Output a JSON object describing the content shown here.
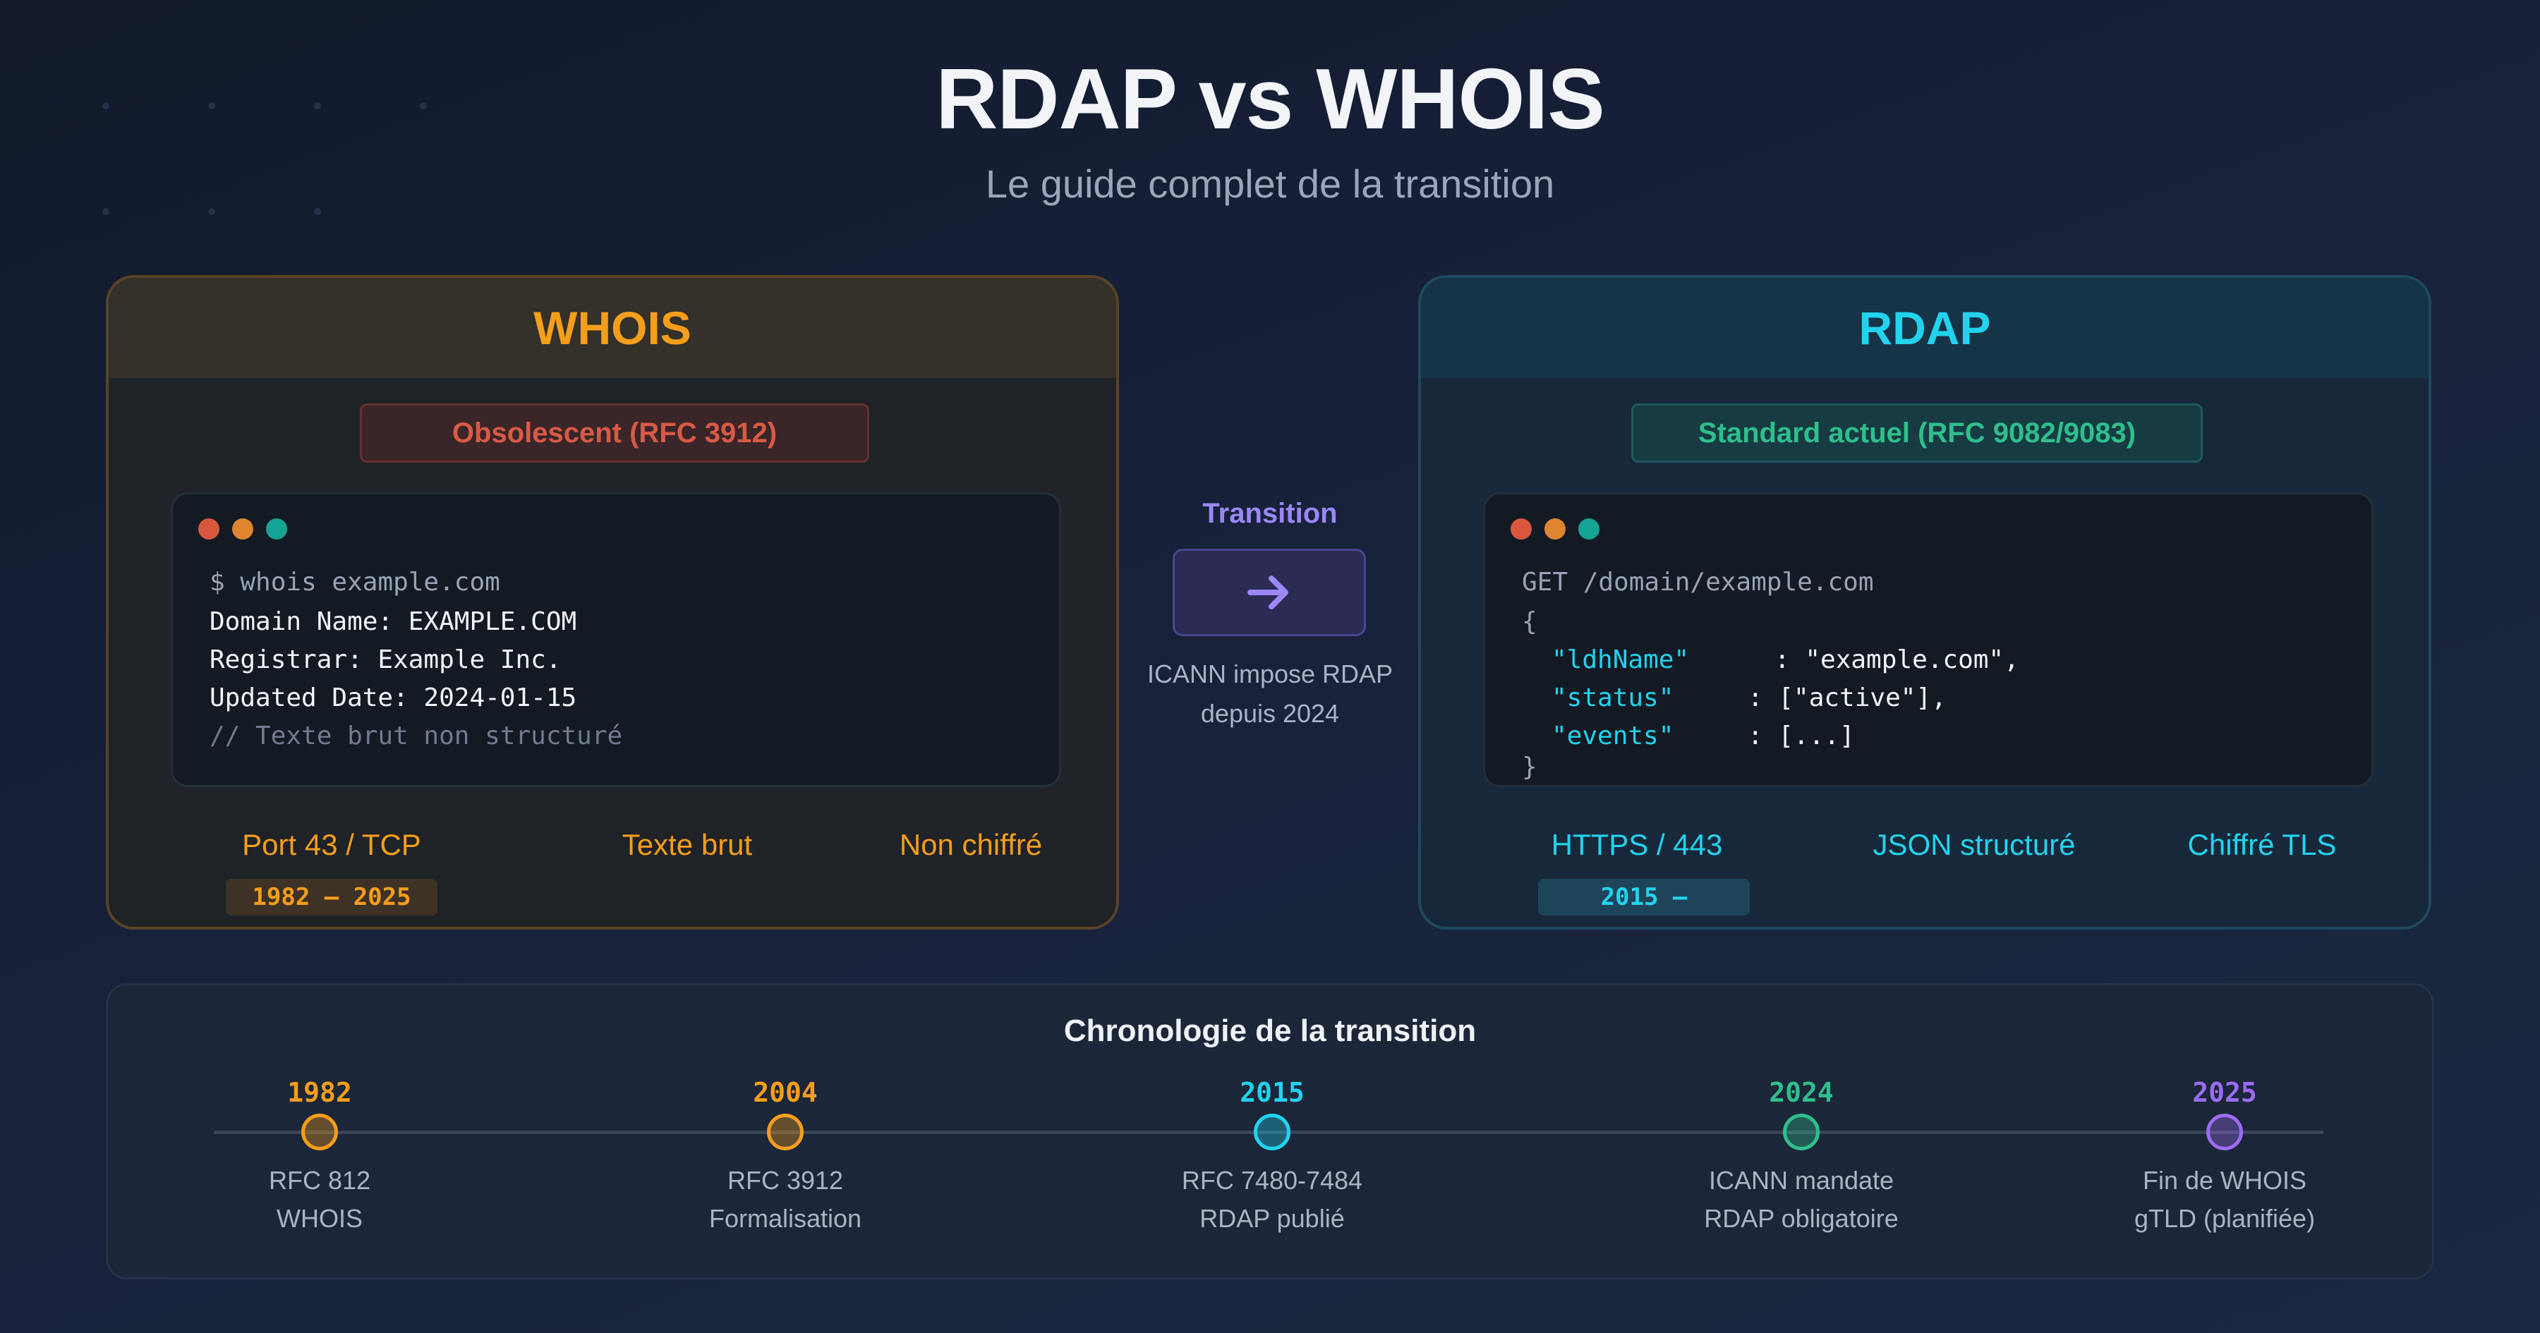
{
  "title": "RDAP vs WHOIS",
  "subtitle": "Le guide complet de la transition",
  "whois": {
    "name": "WHOIS",
    "status": "Obsolescent (RFC 3912)",
    "terminal": {
      "command": "$ whois example.com",
      "lines": [
        "Domain Name: EXAMPLE.COM",
        "Registrar: Example Inc.",
        "Updated Date: 2024-01-15"
      ],
      "comment": "// Texte brut non structuré"
    },
    "features": [
      "Port 43 / TCP",
      "Texte brut",
      "Non chiffré"
    ],
    "years": "1982 – 2025"
  },
  "rdap": {
    "name": "RDAP",
    "status": "Standard actuel (RFC 9082/9083)",
    "terminal": {
      "request": "GET /domain/example.com",
      "open_brace": "{",
      "fields": [
        {
          "key": "\"ldhName\"",
          "value": ": \"example.com\","
        },
        {
          "key": "\"status\"",
          "value": ": [\"active\"],"
        },
        {
          "key": "\"events\"",
          "value": ": [...]"
        }
      ],
      "close_brace": "}"
    },
    "features": [
      "HTTPS / 443",
      "JSON structuré",
      "Chiffré TLS"
    ],
    "years": "2015 –"
  },
  "transition": {
    "label": "Transition",
    "icon": "arrow-right-icon",
    "note_line1": "ICANN impose RDAP",
    "note_line2": "depuis 2024"
  },
  "timeline": {
    "title": "Chronologie de la transition",
    "events": [
      {
        "year": "1982",
        "line1": "RFC 812",
        "line2": "WHOIS",
        "color": "#f59e1b"
      },
      {
        "year": "2004",
        "line1": "RFC 3912",
        "line2": "Formalisation",
        "color": "#f59e1b"
      },
      {
        "year": "2015",
        "line1": "RFC 7480-7484",
        "line2": "RDAP publié",
        "color": "#22d3ee"
      },
      {
        "year": "2024",
        "line1": "ICANN mandate",
        "line2": "RDAP obligatoire",
        "color": "#2fbf8c"
      },
      {
        "year": "2025",
        "line1": "Fin de WHOIS",
        "line2": "gTLD (planifiée)",
        "color": "#9b6bf2"
      }
    ]
  },
  "colors": {
    "whois_accent": "#f59e1b",
    "rdap_accent": "#22d3ee",
    "transition_accent": "#9b87f5",
    "window_dots": [
      "#d9573f",
      "#e0852f",
      "#14a394"
    ]
  }
}
